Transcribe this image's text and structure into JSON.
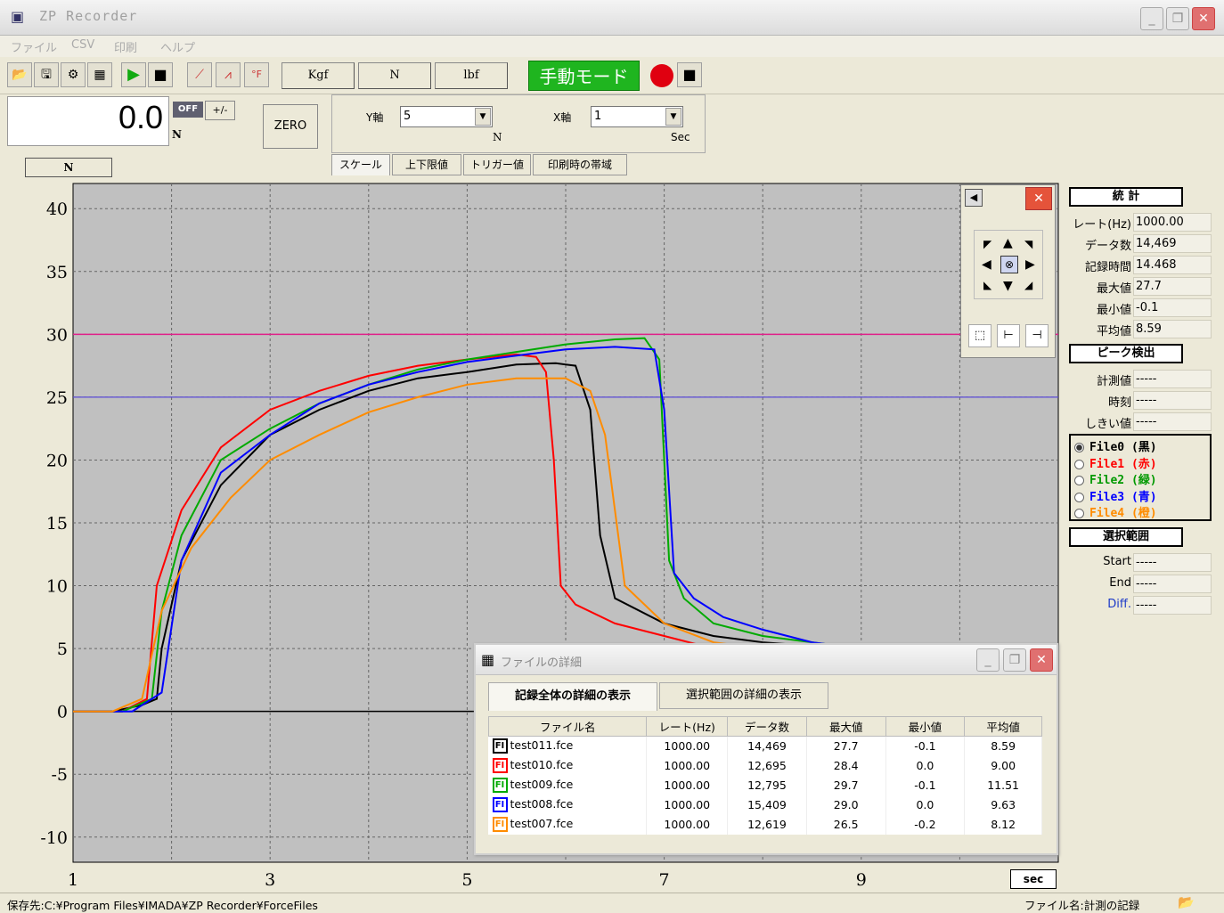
{
  "window": {
    "title": "ZP Recorder"
  },
  "menu": [
    "ファイル",
    "CSV",
    "印刷",
    "ヘルプ"
  ],
  "toolbar": {
    "units": [
      "Kgf",
      "N",
      "lbf"
    ],
    "manual_mode": "手動モード"
  },
  "display": {
    "value": "0.0",
    "unit": "N",
    "off_label": "OFF",
    "sign_label": "+/-",
    "zero_label": "ZERO"
  },
  "scale": {
    "y_label": "Y軸",
    "y_value": "5",
    "y_unit": "N",
    "x_label": "X軸",
    "x_value": "1",
    "x_unit": "Sec",
    "tabs": [
      "スケール",
      "上下限値",
      "トリガー値",
      "印刷時の帯域"
    ]
  },
  "chart_label_n": "N",
  "x_unit_label": "sec",
  "stats": {
    "header": "統 計",
    "rows": [
      {
        "k": "レート(Hz)",
        "v": "1000.00"
      },
      {
        "k": "データ数",
        "v": "14,469"
      },
      {
        "k": "記録時間",
        "v": "14.468"
      },
      {
        "k": "最大値",
        "v": "27.7"
      },
      {
        "k": "最小値",
        "v": "-0.1"
      },
      {
        "k": "平均値",
        "v": "8.59"
      }
    ],
    "peak_header": "ピーク検出",
    "peak_rows": [
      {
        "k": "計測値",
        "v": "-----"
      },
      {
        "k": "時刻",
        "v": "-----"
      },
      {
        "k": "しきい値",
        "v": "-----"
      }
    ],
    "files": [
      {
        "label": "File0 (黒)",
        "color": "#000000"
      },
      {
        "label": "File1 (赤)",
        "color": "#ff0000"
      },
      {
        "label": "File2 (緑)",
        "color": "#009900"
      },
      {
        "label": "File3 (青)",
        "color": "#0000ff"
      },
      {
        "label": "File4 (橙)",
        "color": "#ff8c00"
      }
    ],
    "range_header": "選択範囲",
    "range_rows": [
      {
        "k": "Start",
        "v": "-----"
      },
      {
        "k": "End",
        "v": "-----"
      },
      {
        "k": "Diff.",
        "v": "-----"
      }
    ]
  },
  "detail": {
    "title": "ファイルの詳細",
    "tabs": [
      "記録全体の詳細の表示",
      "選択範囲の詳細の表示"
    ],
    "columns": [
      "ファイル名",
      "レート(Hz)",
      "データ数",
      "最大値",
      "最小値",
      "平均値"
    ],
    "rows": [
      {
        "name": "test011.fce",
        "rate": "1000.00",
        "count": "14,469",
        "max": "27.7",
        "min": "-0.1",
        "avg": "8.59",
        "color": "#000000"
      },
      {
        "name": "test010.fce",
        "rate": "1000.00",
        "count": "12,695",
        "max": "28.4",
        "min": "0.0",
        "avg": "9.00",
        "color": "#ff0000"
      },
      {
        "name": "test009.fce",
        "rate": "1000.00",
        "count": "12,795",
        "max": "29.7",
        "min": "-0.1",
        "avg": "11.51",
        "color": "#00aa00"
      },
      {
        "name": "test008.fce",
        "rate": "1000.00",
        "count": "15,409",
        "max": "29.0",
        "min": "0.0",
        "avg": "9.63",
        "color": "#0000ff"
      },
      {
        "name": "test007.fce",
        "rate": "1000.00",
        "count": "12,619",
        "max": "26.5",
        "min": "-0.2",
        "avg": "8.12",
        "color": "#ff8c00"
      }
    ]
  },
  "status": {
    "left": "保存先:C:¥Program Files¥IMADA¥ZP Recorder¥ForceFiles",
    "right": "ファイル名:計測の記録"
  },
  "chart_data": {
    "type": "line",
    "xlim": [
      1,
      10
    ],
    "ylim": [
      -12,
      42
    ],
    "x_ticks": [
      1,
      3,
      5,
      7,
      9
    ],
    "y_ticks": [
      40,
      35,
      30,
      25,
      20,
      15,
      10,
      5,
      0,
      -5,
      -10
    ],
    "grid": true,
    "upper_limit": 30,
    "lower_limit": 25,
    "series": [
      {
        "color": "#000000",
        "x": [
          1,
          1.4,
          1.7,
          1.85,
          1.9,
          2.1,
          2.5,
          3,
          3.5,
          4,
          4.5,
          5,
          5.5,
          5.9,
          6.1,
          6.25,
          6.35,
          6.5,
          7,
          7.5,
          8,
          8.5,
          9,
          10
        ],
        "y": [
          0,
          0,
          0.5,
          1,
          5,
          12,
          18,
          22,
          24,
          25.5,
          26.5,
          27,
          27.6,
          27.7,
          27.5,
          24,
          14,
          9,
          7,
          6,
          5.5,
          5.2,
          5,
          4.8
        ]
      },
      {
        "color": "#ff0000",
        "x": [
          1,
          1.5,
          1.75,
          1.85,
          2.1,
          2.5,
          3,
          3.5,
          4,
          4.5,
          5,
          5.5,
          5.7,
          5.8,
          5.88,
          5.95,
          6.1,
          6.5,
          7,
          7.5,
          8
        ],
        "y": [
          0,
          0,
          1,
          10,
          16,
          21,
          24,
          25.5,
          26.7,
          27.5,
          28,
          28.4,
          28.2,
          27,
          20,
          10,
          8.5,
          7,
          6,
          5,
          4.5
        ]
      },
      {
        "color": "#00aa00",
        "x": [
          1,
          1.5,
          1.8,
          1.9,
          2.1,
          2.5,
          3,
          3.5,
          4,
          4.5,
          5,
          5.5,
          6,
          6.5,
          6.8,
          6.95,
          7.05,
          7.2,
          7.5,
          8,
          8.5,
          9,
          10
        ],
        "y": [
          0,
          0,
          1,
          8,
          14,
          20,
          22.5,
          24.5,
          26,
          27.2,
          28,
          28.6,
          29.2,
          29.6,
          29.7,
          28,
          12,
          9,
          7,
          6,
          5.5,
          5,
          4.5
        ]
      },
      {
        "color": "#0000ff",
        "x": [
          1,
          1.6,
          1.9,
          2.1,
          2.5,
          3,
          3.5,
          4,
          4.5,
          5,
          5.5,
          6,
          6.5,
          6.9,
          7,
          7.1,
          7.3,
          7.6,
          8,
          8.5,
          9,
          10
        ],
        "y": [
          0,
          0,
          1.5,
          12,
          19,
          22,
          24.5,
          26,
          27,
          27.8,
          28.3,
          28.8,
          29,
          28.8,
          24,
          11,
          9,
          7.5,
          6.5,
          5.5,
          5,
          4.5
        ]
      },
      {
        "color": "#ff8c00",
        "x": [
          1,
          1.4,
          1.7,
          1.9,
          2.2,
          2.6,
          3,
          3.5,
          4,
          4.5,
          5,
          5.5,
          6,
          6.25,
          6.4,
          6.5,
          6.6,
          7,
          7.5,
          8
        ],
        "y": [
          0,
          0,
          1,
          8,
          13,
          17,
          20,
          22,
          23.8,
          25,
          26,
          26.5,
          26.5,
          25.5,
          22,
          16,
          10,
          7,
          5.5,
          5
        ]
      }
    ]
  }
}
